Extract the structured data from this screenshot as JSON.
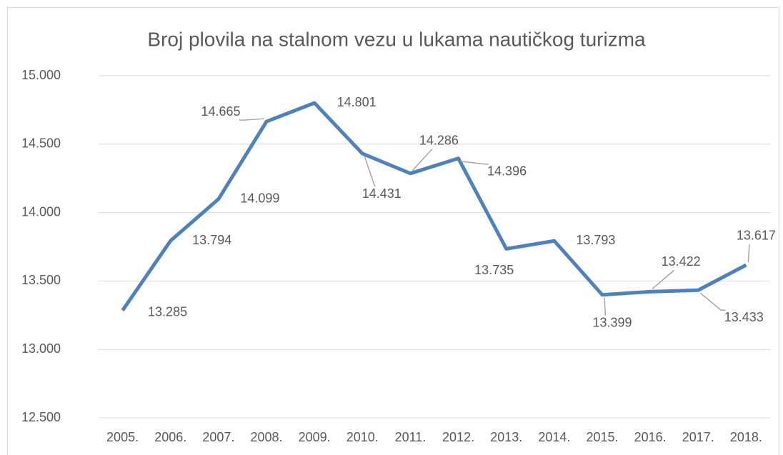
{
  "chart_data": {
    "type": "line",
    "title": "Broj plovila na stalnom vezu u lukama nautičkog turizma",
    "categories": [
      "2005.",
      "2006.",
      "2007.",
      "2008.",
      "2009.",
      "2010.",
      "2011.",
      "2012.",
      "2013.",
      "2014.",
      "2015.",
      "2016.",
      "2017.",
      "2018."
    ],
    "series": [
      {
        "color": "#4f81bd",
        "values": [
          13285,
          13794,
          14099,
          14665,
          14801,
          14431,
          14286,
          14396,
          13735,
          13793,
          13399,
          13422,
          13433,
          13617
        ],
        "value_labels": [
          "13.285",
          "13.794",
          "14.099",
          "14.665",
          "14.801",
          "14.431",
          "14.286",
          "14.396",
          "13.735",
          "13.793",
          "13.399",
          "13.422",
          "13.433",
          "13.617"
        ]
      }
    ],
    "ylim": [
      12500,
      15000
    ],
    "yticks": [
      {
        "value": 12500,
        "label": "12.500"
      },
      {
        "value": 13000,
        "label": "13.000"
      },
      {
        "value": 13500,
        "label": "13.500"
      },
      {
        "value": 14000,
        "label": "14.000"
      },
      {
        "value": 14500,
        "label": "14.500"
      },
      {
        "value": 15000,
        "label": "15.000"
      }
    ],
    "grid": true
  }
}
